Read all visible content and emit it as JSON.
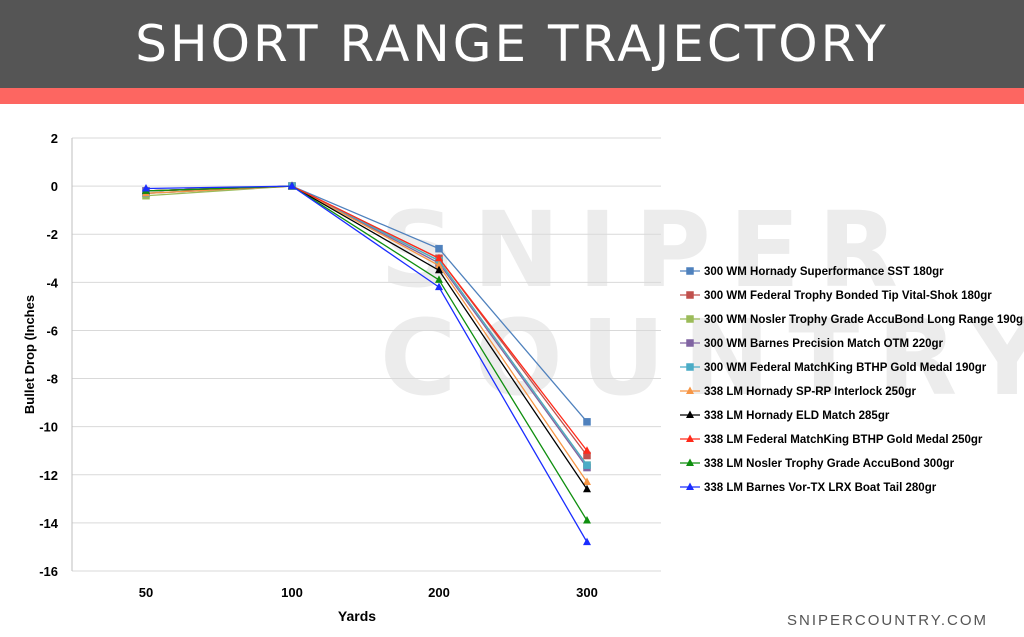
{
  "header": {
    "title": "SHORT RANGE TRAJECTORY"
  },
  "watermark": {
    "line1": "SNIPER",
    "line2": "COUNTRY"
  },
  "footer": {
    "site": "SNIPERCOUNTRY.COM"
  },
  "colors": {
    "header_bg": "#555555",
    "accent": "#fd6661",
    "grid": "#d9d9d9"
  },
  "chart_data": {
    "type": "line",
    "title": "",
    "xlabel": "Yards",
    "ylabel": "Bullet Drop (Inches",
    "categories": [
      "50",
      "100",
      "200",
      "300"
    ],
    "ylim": [
      -16,
      2
    ],
    "yticks": [
      "2",
      "0",
      "-2",
      "-4",
      "-6",
      "-8",
      "-10",
      "-12",
      "-14",
      "-16"
    ],
    "grid": true,
    "legend_position": "right",
    "series": [
      {
        "name": "300 WM Hornady Superformance SST 180gr",
        "color": "#4f81bd",
        "marker": "square",
        "values": [
          -0.2,
          0,
          -2.6,
          -9.8
        ]
      },
      {
        "name": "300 WM Federal Trophy Bonded Tip Vital-Shok 180gr",
        "color": "#c0504d",
        "marker": "square",
        "values": [
          -0.3,
          0,
          -3.0,
          -11.2
        ]
      },
      {
        "name": "300 WM Nosler Trophy Grade AccuBond Long Range 190gr",
        "color": "#9bbb59",
        "marker": "square",
        "values": [
          -0.4,
          0,
          -3.1,
          -11.6
        ]
      },
      {
        "name": "300 WM Barnes Precision Match OTM 220gr",
        "color": "#8064a2",
        "marker": "square",
        "values": [
          -0.2,
          0,
          -3.2,
          -11.7
        ]
      },
      {
        "name": "300 WM Federal MatchKing BTHP Gold Medal 190gr",
        "color": "#4bacc6",
        "marker": "square",
        "values": [
          -0.3,
          0,
          -3.1,
          -11.6
        ]
      },
      {
        "name": "338 LM Hornady SP-RP Interlock 250gr",
        "color": "#f79646",
        "marker": "triangle",
        "values": [
          -0.3,
          0,
          -3.3,
          -12.3
        ]
      },
      {
        "name": "338 LM Hornady ELD Match 285gr",
        "color": "#000000",
        "marker": "triangle",
        "values": [
          -0.2,
          0,
          -3.5,
          -12.6
        ]
      },
      {
        "name": "338 LM Federal MatchKing BTHP Gold Medal 250gr",
        "color": "#ff2a1a",
        "marker": "triangle",
        "values": [
          -0.2,
          0,
          -3.0,
          -11.0
        ]
      },
      {
        "name": "338 LM Nosler Trophy Grade AccuBond 300gr",
        "color": "#0f8f0f",
        "marker": "triangle",
        "values": [
          -0.2,
          0,
          -3.9,
          -13.9
        ]
      },
      {
        "name": "338 LM Barnes Vor-TX LRX Boat Tail 280gr",
        "color": "#1a2dff",
        "marker": "triangle",
        "values": [
          -0.1,
          0,
          -4.2,
          -14.8
        ]
      }
    ]
  }
}
